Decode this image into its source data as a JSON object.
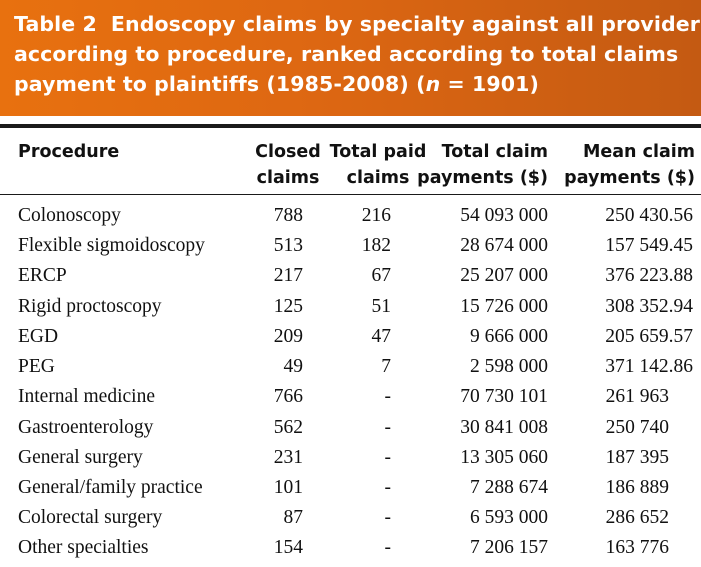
{
  "title": {
    "number": "Table 2",
    "line1": "Endoscopy claims by specialty against all providers",
    "line2": "according to procedure, ranked according to total claims",
    "line3_pre": "payment to plaintiffs (1985-2008) (",
    "line3_n": "n",
    "line3_post": " = 1901)"
  },
  "columns": {
    "procedure": "Procedure",
    "closed_1": "Closed",
    "closed_2": "claims",
    "paid_1": "Total paid",
    "paid_2": "claims",
    "total_1": "Total claim",
    "total_2": "payments ($)",
    "mean_1": "Mean claim",
    "mean_2": "payments ($)"
  },
  "rows": [
    {
      "procedure": "Colonoscopy",
      "closed": "788",
      "paid": "216",
      "total": "54 093 000",
      "mean": "250 430.56"
    },
    {
      "procedure": "Flexible sigmoidoscopy",
      "closed": "513",
      "paid": "182",
      "total": "28 674 000",
      "mean": "157 549.45"
    },
    {
      "procedure": "ERCP",
      "closed": "217",
      "paid": "67",
      "total": "25 207 000",
      "mean": "376 223.88"
    },
    {
      "procedure": "Rigid proctoscopy",
      "closed": "125",
      "paid": "51",
      "total": "15 726 000",
      "mean": "308 352.94"
    },
    {
      "procedure": "EGD",
      "closed": "209",
      "paid": "47",
      "total": "9 666 000",
      "mean": "205 659.57"
    },
    {
      "procedure": "PEG",
      "closed": "49",
      "paid": "7",
      "total": "2 598 000",
      "mean": "371 142.86"
    },
    {
      "procedure": "Internal medicine",
      "closed": "766",
      "paid": "-",
      "total": "70 730 101",
      "mean": "261 963"
    },
    {
      "procedure": "Gastroenterology",
      "closed": "562",
      "paid": "-",
      "total": "30 841 008",
      "mean": "250 740"
    },
    {
      "procedure": "General surgery",
      "closed": "231",
      "paid": "-",
      "total": "13 305 060",
      "mean": "187 395"
    },
    {
      "procedure": "General/family practice",
      "closed": "101",
      "paid": "-",
      "total": "7 288 674",
      "mean": "186 889"
    },
    {
      "procedure": "Colorectal surgery",
      "closed": "87",
      "paid": "-",
      "total": "6 593 000",
      "mean": "286 652"
    },
    {
      "procedure": "Other specialties",
      "closed": "154",
      "paid": "-",
      "total": "7 206 157",
      "mean": "163 776"
    }
  ],
  "colors": {
    "banner": "#dd6712",
    "banner_text": "#ffffff",
    "rule": "#1a1a1a"
  }
}
